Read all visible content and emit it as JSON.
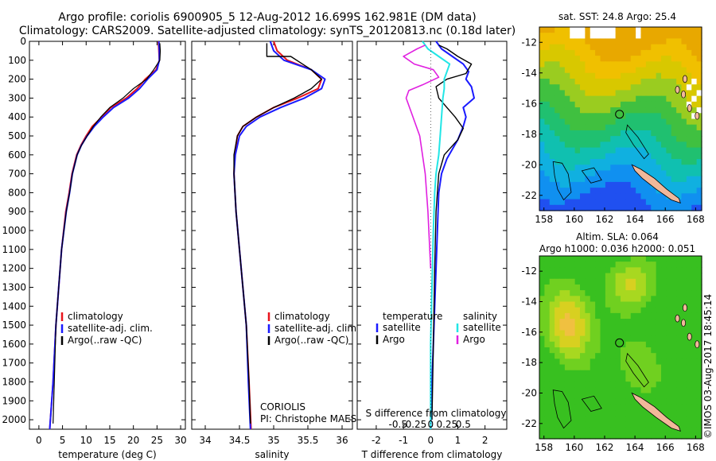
{
  "header": {
    "title_line1": "Argo profile: coriolis 6900905_5 12-Aug-2012 16.699S 162.981E (DM data)",
    "title_line2": "Climatology: CARS2009. Satellite-adjusted climatology: synTS_20120813.nc (0.18d later)"
  },
  "side_label": "©IMOS 03-Aug-2017 18:45:14",
  "colors": {
    "climatology": "#e8141c",
    "satellite": "#1a1aff",
    "argo": "#000000",
    "s_sat": "#22e6e6",
    "s_argo": "#e020e0",
    "coast": "#000000",
    "land": "#f2b89a"
  },
  "chart_data": [
    {
      "id": "temperature",
      "type": "line",
      "xlabel": "temperature (deg C)",
      "ylabel": "",
      "xlim": [
        -2,
        31
      ],
      "ylim": [
        0,
        2050
      ],
      "y_reversed": true,
      "xticks": [
        0,
        5,
        10,
        15,
        20,
        25,
        30
      ],
      "yticks": [
        0,
        100,
        200,
        300,
        400,
        500,
        600,
        700,
        800,
        900,
        1000,
        1100,
        1200,
        1300,
        1400,
        1500,
        1600,
        1700,
        1800,
        1900,
        2000
      ],
      "legend": [
        "climatology",
        "satellite-adj. clim.",
        "Argo(..raw -QC)"
      ],
      "legend_position": "lower-center",
      "series": [
        {
          "name": "climatology",
          "color": "#e8141c",
          "width": 2,
          "x": [
            25.3,
            25.4,
            25.5,
            24.8,
            22.5,
            20.8,
            18.5,
            15.2,
            13.3,
            11.3,
            10.0,
            8.9,
            8.0,
            7.0,
            6.4,
            5.7,
            4.8,
            4.2,
            3.6,
            3.0,
            2.3
          ],
          "y": [
            0,
            50,
            100,
            150,
            200,
            250,
            300,
            350,
            400,
            450,
            500,
            550,
            600,
            700,
            800,
            900,
            1100,
            1300,
            1500,
            1800,
            2050
          ]
        },
        {
          "name": "satellite-adj. clim.",
          "color": "#1a1aff",
          "width": 2,
          "x": [
            25.4,
            25.5,
            25.5,
            25.0,
            23.0,
            21.3,
            19.0,
            15.8,
            13.6,
            11.7,
            10.2,
            9.0,
            8.1,
            7.1,
            6.5,
            5.8,
            4.8,
            4.2,
            3.6,
            3.0,
            2.3
          ],
          "y": [
            0,
            50,
            100,
            150,
            200,
            250,
            300,
            350,
            400,
            450,
            500,
            550,
            600,
            700,
            800,
            900,
            1100,
            1300,
            1500,
            1800,
            2050
          ]
        },
        {
          "name": "Argo(..raw -QC)",
          "color": "#000000",
          "width": 1.2,
          "x": [
            25.6,
            25.7,
            25.6,
            24.3,
            22.8,
            20.0,
            17.8,
            15.0,
            13.1,
            11.5,
            10.2,
            9.0,
            8.1,
            7.1,
            6.5,
            5.8,
            4.8,
            4.2,
            3.6,
            3.0
          ],
          "y": [
            10,
            50,
            100,
            150,
            200,
            250,
            300,
            350,
            400,
            450,
            500,
            550,
            600,
            700,
            800,
            900,
            1100,
            1300,
            1500,
            2020
          ]
        }
      ]
    },
    {
      "id": "salinity",
      "type": "line",
      "xlabel": "salinity",
      "ylabel": "",
      "xlim": [
        33.65,
        31.17
      ],
      "ylim": [
        0,
        2050
      ],
      "y_reversed": true,
      "xticks": [
        34,
        34.5,
        35,
        35.5,
        36
      ],
      "yticks": [],
      "legend": [
        "climatology",
        "satellite-adj. clim.",
        "Argo(..raw -QC)"
      ],
      "legend_position": "lower-right",
      "annotation": [
        "CORIOLIS",
        "PI: Christophe MAES"
      ],
      "series": [
        {
          "name": "climatology",
          "color": "#e8141c",
          "width": 2,
          "x": [
            35.0,
            35.05,
            35.2,
            35.55,
            35.7,
            35.65,
            35.35,
            35.0,
            34.75,
            34.55,
            34.47,
            34.43,
            34.42,
            34.45,
            34.5,
            34.55,
            34.6,
            34.64,
            34.67
          ],
          "y": [
            0,
            50,
            100,
            150,
            200,
            250,
            300,
            350,
            400,
            450,
            500,
            600,
            700,
            900,
            1100,
            1300,
            1500,
            1800,
            2050
          ]
        },
        {
          "name": "satellite-adj. clim.",
          "color": "#1a1aff",
          "width": 2,
          "x": [
            34.95,
            35.0,
            35.15,
            35.55,
            35.75,
            35.7,
            35.45,
            35.1,
            34.8,
            34.6,
            34.5,
            34.44,
            34.42,
            34.45,
            34.5,
            34.55,
            34.6,
            34.63,
            34.66
          ],
          "y": [
            0,
            50,
            100,
            150,
            200,
            250,
            300,
            350,
            400,
            450,
            500,
            600,
            700,
            900,
            1100,
            1300,
            1500,
            1800,
            2050
          ]
        },
        {
          "name": "Argo(..raw -QC)",
          "color": "#000000",
          "width": 1.4,
          "x": [
            34.9,
            34.9,
            35.25,
            35.55,
            35.7,
            35.55,
            35.3,
            35.0,
            34.75,
            34.55,
            34.47,
            34.42,
            34.42,
            34.45,
            34.5,
            34.55,
            34.6,
            34.64,
            34.66
          ],
          "y": [
            10,
            80,
            80,
            150,
            200,
            250,
            300,
            350,
            400,
            450,
            500,
            600,
            700,
            900,
            1100,
            1300,
            1500,
            1800,
            2020
          ]
        }
      ]
    },
    {
      "id": "difference",
      "type": "line",
      "xlabel": "T difference from climatology",
      "xlabel_top": "S difference from climatology",
      "xlim": [
        -2.7,
        2.8
      ],
      "ylim": [
        0,
        2050
      ],
      "y_reversed": true,
      "xticks": [
        -2,
        -1,
        0,
        1,
        2
      ],
      "xticks_s": [
        -0.5,
        -0.25,
        0,
        0.25,
        0.5
      ],
      "legend_t": {
        "title": "temperature",
        "items": [
          "satellite",
          "Argo"
        ]
      },
      "legend_s": {
        "title": "salinity",
        "items": [
          "satellite",
          "Argo"
        ]
      },
      "series": [
        {
          "name": "T satellite",
          "color": "#1a1aff",
          "width": 2,
          "x": [
            0.2,
            0.4,
            0.8,
            1.2,
            1.4,
            1.3,
            1.5,
            1.6,
            1.2,
            1.3,
            1.2,
            1.0,
            0.6,
            0.4,
            0.3,
            0.25,
            0.2,
            0.15,
            0.1,
            0.05,
            0.0
          ],
          "y": [
            0,
            40,
            80,
            120,
            160,
            200,
            240,
            300,
            350,
            400,
            450,
            520,
            620,
            700,
            800,
            1000,
            1200,
            1400,
            1600,
            1800,
            2050
          ]
        },
        {
          "name": "T Argo",
          "color": "#000000",
          "width": 1.4,
          "x": [
            0.3,
            0.6,
            1.0,
            1.5,
            1.3,
            0.6,
            0.2,
            0.3,
            0.6,
            0.9,
            1.2,
            1.0,
            0.5,
            0.3,
            0.2,
            0.15,
            0.1,
            0.05
          ],
          "y": [
            20,
            40,
            80,
            120,
            170,
            200,
            240,
            300,
            350,
            400,
            460,
            520,
            600,
            700,
            900,
            1200,
            1600,
            2000
          ]
        },
        {
          "name": "S satellite",
          "color": "#22e6e6",
          "width": 2,
          "x": [
            -0.3,
            -0.1,
            0.3,
            0.7,
            0.6,
            0.5,
            0.5,
            0.45,
            0.4,
            0.35,
            0.3,
            0.2,
            0.15,
            0.1,
            0.05,
            0.0,
            0.0
          ],
          "y": [
            0,
            40,
            80,
            120,
            160,
            200,
            250,
            300,
            400,
            500,
            600,
            700,
            800,
            1000,
            1300,
            1600,
            2050
          ]
        },
        {
          "name": "S Argo",
          "color": "#e020e0",
          "width": 1.6,
          "x": [
            -0.2,
            -0.5,
            -1.0,
            -0.6,
            0.1,
            0.3,
            -0.3,
            -0.8,
            -0.9,
            -0.7,
            -0.4,
            -0.2,
            -0.1,
            0.0
          ],
          "y": [
            20,
            40,
            80,
            120,
            150,
            190,
            230,
            260,
            300,
            380,
            500,
            700,
            900,
            1200
          ]
        }
      ]
    },
    {
      "id": "sst_map",
      "type": "heatmap",
      "title": "sat. SST: 24.8 Argo: 25.4",
      "xlim": [
        157.7,
        168.4
      ],
      "ylim": [
        -23,
        -11
      ],
      "xticks": [
        158,
        160,
        162,
        164,
        166,
        168
      ],
      "yticks": [
        -12,
        -14,
        -16,
        -18,
        -20,
        -22
      ],
      "marker": {
        "lon": 162.98,
        "lat": -16.7
      }
    },
    {
      "id": "sla_map",
      "type": "heatmap",
      "title_line1": "Altim. SLA: 0.064",
      "title_line2": "Argo h1000: 0.036 h2000: 0.051",
      "xlim": [
        157.7,
        168.4
      ],
      "ylim": [
        -23,
        -11
      ],
      "xticks": [
        158,
        160,
        162,
        164,
        166,
        168
      ],
      "yticks": [
        -12,
        -14,
        -16,
        -18,
        -20,
        -22
      ],
      "marker": {
        "lon": 162.98,
        "lat": -16.7
      }
    }
  ]
}
